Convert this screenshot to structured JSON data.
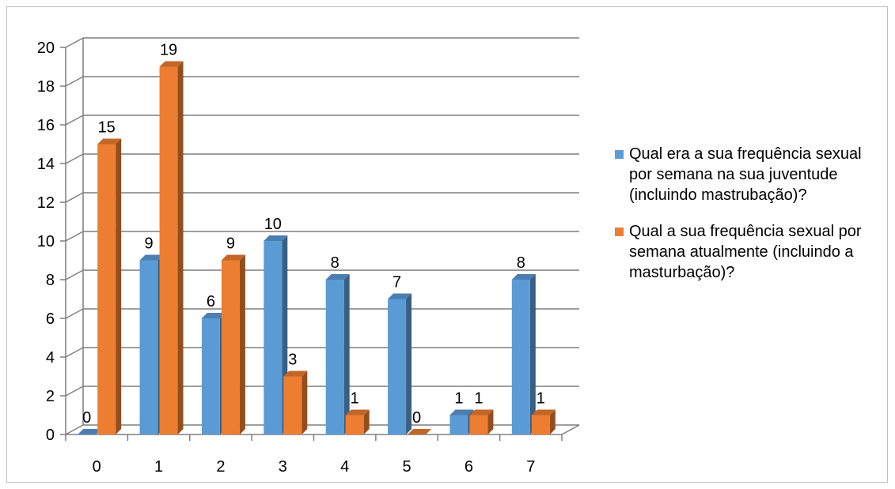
{
  "chart_data": {
    "type": "bar",
    "style": "3d-clustered-column",
    "categories": [
      "0",
      "1",
      "2",
      "3",
      "4",
      "5",
      "6",
      "7"
    ],
    "series": [
      {
        "name": "Qual era a sua frequência sexual por semana na sua juventude (incluindo mastrubação)?",
        "color": "#5b9bd5",
        "values": [
          0,
          9,
          6,
          10,
          8,
          7,
          1,
          8
        ]
      },
      {
        "name": "Qual a sua frequência sexual por semana atualmente (incluindo a masturbação)?",
        "color": "#ed7d31",
        "values": [
          15,
          19,
          9,
          3,
          1,
          0,
          1,
          1
        ]
      }
    ],
    "yticks": [
      "0",
      "2",
      "4",
      "6",
      "8",
      "10",
      "12",
      "14",
      "16",
      "18",
      "20"
    ],
    "ylim": [
      0,
      20
    ],
    "grid": true,
    "data_labels": true,
    "legend_position": "right"
  }
}
